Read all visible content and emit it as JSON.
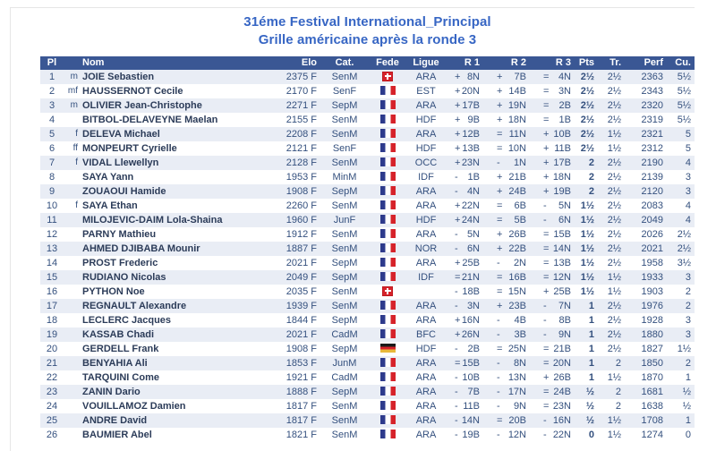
{
  "header": {
    "title": "31éme Festival International_Principal",
    "subtitle": "Grille américaine après la ronde 3"
  },
  "colors": {
    "title_text": "#3766C4",
    "table_header_bg": "#3A5794",
    "table_header_text": "#FFFFFF",
    "row_alt_bg": "#E9EDF5",
    "body_text": "#34507E",
    "flag_france_blue": "#2D3A8C",
    "flag_red": "#D6222A",
    "flag_germany_gold": "#E8B93B",
    "flag_germany_black": "#1A1A1A"
  },
  "table": {
    "columns": [
      "Pl",
      "Nom",
      "Elo",
      "Cat.",
      "Fede",
      "Ligue",
      "R 1",
      "R 2",
      "R 3",
      "Pts",
      "Tr.",
      "Perf",
      "Cu."
    ],
    "rows": [
      {
        "pl": "1",
        "title": "m",
        "name": "JOIE Sebastien",
        "elo": "2375 F",
        "cat": "SenM",
        "fede": "SUI",
        "ligue": "ARA",
        "r1": "+ 8N",
        "r2": "+ 7B",
        "r3": "= 4N",
        "pts": "2½",
        "tr": "2½",
        "perf": "2363",
        "cu": "5½"
      },
      {
        "pl": "2",
        "title": "mf",
        "name": "HAUSSERNOT Cecile",
        "elo": "2170 F",
        "cat": "SenF",
        "fede": "FRA",
        "ligue": "EST",
        "r1": "+ 20N",
        "r2": "+ 14B",
        "r3": "= 3N",
        "pts": "2½",
        "tr": "2½",
        "perf": "2343",
        "cu": "5½"
      },
      {
        "pl": "3",
        "title": "m",
        "name": "OLIVIER Jean-Christophe",
        "elo": "2271 F",
        "cat": "SepM",
        "fede": "FRA",
        "ligue": "ARA",
        "r1": "+ 17B",
        "r2": "+ 19N",
        "r3": "= 2B",
        "pts": "2½",
        "tr": "2½",
        "perf": "2320",
        "cu": "5½"
      },
      {
        "pl": "4",
        "title": "",
        "name": "BITBOL-DELAVEYNE Maelan",
        "elo": "2155 F",
        "cat": "SenM",
        "fede": "FRA",
        "ligue": "HDF",
        "r1": "+ 9B",
        "r2": "+ 18N",
        "r3": "= 1B",
        "pts": "2½",
        "tr": "2½",
        "perf": "2319",
        "cu": "5½"
      },
      {
        "pl": "5",
        "title": "f",
        "name": "DELEVA Michael",
        "elo": "2208 F",
        "cat": "SenM",
        "fede": "FRA",
        "ligue": "ARA",
        "r1": "+ 12B",
        "r2": "= 11N",
        "r3": "+ 10B",
        "pts": "2½",
        "tr": "1½",
        "perf": "2321",
        "cu": "5"
      },
      {
        "pl": "6",
        "title": "ff",
        "name": "MONPEURT Cyrielle",
        "elo": "2121 F",
        "cat": "SenF",
        "fede": "FRA",
        "ligue": "HDF",
        "r1": "+ 13B",
        "r2": "= 10N",
        "r3": "+ 11B",
        "pts": "2½",
        "tr": "1½",
        "perf": "2312",
        "cu": "5"
      },
      {
        "pl": "7",
        "title": "f",
        "name": "VIDAL Llewellyn",
        "elo": "2128 F",
        "cat": "SenM",
        "fede": "FRA",
        "ligue": "OCC",
        "r1": "+ 23N",
        "r2": "- 1N",
        "r3": "+ 17B",
        "pts": "2",
        "tr": "2½",
        "perf": "2190",
        "cu": "4"
      },
      {
        "pl": "8",
        "title": "",
        "name": "SAYA Yann",
        "elo": "1953 F",
        "cat": "MinM",
        "fede": "FRA",
        "ligue": "IDF",
        "r1": "- 1B",
        "r2": "+ 21B",
        "r3": "+ 18N",
        "pts": "2",
        "tr": "2½",
        "perf": "2139",
        "cu": "3"
      },
      {
        "pl": "9",
        "title": "",
        "name": "ZOUAOUI Hamide",
        "elo": "1908 F",
        "cat": "SepM",
        "fede": "FRA",
        "ligue": "ARA",
        "r1": "- 4N",
        "r2": "+ 24B",
        "r3": "+ 19B",
        "pts": "2",
        "tr": "2½",
        "perf": "2120",
        "cu": "3"
      },
      {
        "pl": "10",
        "title": "f",
        "name": "SAYA Ethan",
        "elo": "2260 F",
        "cat": "SenM",
        "fede": "FRA",
        "ligue": "ARA",
        "r1": "+ 22N",
        "r2": "= 6B",
        "r3": "- 5N",
        "pts": "1½",
        "tr": "2½",
        "perf": "2083",
        "cu": "4"
      },
      {
        "pl": "11",
        "title": "",
        "name": "MILOJEVIC-DAIM Lola-Shaina",
        "elo": "1960 F",
        "cat": "JunF",
        "fede": "FRA",
        "ligue": "HDF",
        "r1": "+ 24N",
        "r2": "= 5B",
        "r3": "- 6N",
        "pts": "1½",
        "tr": "2½",
        "perf": "2049",
        "cu": "4"
      },
      {
        "pl": "12",
        "title": "",
        "name": "PARNY Mathieu",
        "elo": "1912 F",
        "cat": "SenM",
        "fede": "FRA",
        "ligue": "ARA",
        "r1": "- 5N",
        "r2": "+ 26B",
        "r3": "= 15B",
        "pts": "1½",
        "tr": "2½",
        "perf": "2026",
        "cu": "2½"
      },
      {
        "pl": "13",
        "title": "",
        "name": "AHMED DJIBABA Mounir",
        "elo": "1887 F",
        "cat": "SenM",
        "fede": "FRA",
        "ligue": "NOR",
        "r1": "- 6N",
        "r2": "+ 22B",
        "r3": "= 14N",
        "pts": "1½",
        "tr": "2½",
        "perf": "2021",
        "cu": "2½"
      },
      {
        "pl": "14",
        "title": "",
        "name": "PROST Frederic",
        "elo": "2021 F",
        "cat": "SepM",
        "fede": "FRA",
        "ligue": "ARA",
        "r1": "+ 25B",
        "r2": "- 2N",
        "r3": "= 13B",
        "pts": "1½",
        "tr": "2½",
        "perf": "1958",
        "cu": "3½"
      },
      {
        "pl": "15",
        "title": "",
        "name": "RUDIANO Nicolas",
        "elo": "2049 F",
        "cat": "SepM",
        "fede": "FRA",
        "ligue": "IDF",
        "r1": "= 21N",
        "r2": "= 16B",
        "r3": "= 12N",
        "pts": "1½",
        "tr": "1½",
        "perf": "1933",
        "cu": "3"
      },
      {
        "pl": "16",
        "title": "",
        "name": "PYTHON Noe",
        "elo": "2035 F",
        "cat": "SenM",
        "fede": "SUI",
        "ligue": "",
        "r1": "- 18B",
        "r2": "= 15N",
        "r3": "+ 25B",
        "pts": "1½",
        "tr": "1½",
        "perf": "1903",
        "cu": "2"
      },
      {
        "pl": "17",
        "title": "",
        "name": "REGNAULT Alexandre",
        "elo": "1939 F",
        "cat": "SenM",
        "fede": "FRA",
        "ligue": "ARA",
        "r1": "- 3N",
        "r2": "+ 23B",
        "r3": "- 7N",
        "pts": "1",
        "tr": "2½",
        "perf": "1976",
        "cu": "2"
      },
      {
        "pl": "18",
        "title": "",
        "name": "LECLERC Jacques",
        "elo": "1844 F",
        "cat": "SepM",
        "fede": "FRA",
        "ligue": "ARA",
        "r1": "+ 16N",
        "r2": "- 4B",
        "r3": "- 8B",
        "pts": "1",
        "tr": "2½",
        "perf": "1928",
        "cu": "3"
      },
      {
        "pl": "19",
        "title": "",
        "name": "KASSAB Chadi",
        "elo": "2021 F",
        "cat": "CadM",
        "fede": "FRA",
        "ligue": "BFC",
        "r1": "+ 26N",
        "r2": "- 3B",
        "r3": "- 9N",
        "pts": "1",
        "tr": "2½",
        "perf": "1880",
        "cu": "3"
      },
      {
        "pl": "20",
        "title": "",
        "name": "GERDELL Frank",
        "elo": "1908 F",
        "cat": "SepM",
        "fede": "GER",
        "ligue": "HDF",
        "r1": "- 2B",
        "r2": "= 25N",
        "r3": "= 21B",
        "pts": "1",
        "tr": "2½",
        "perf": "1827",
        "cu": "1½"
      },
      {
        "pl": "21",
        "title": "",
        "name": "BENYAHIA Ali",
        "elo": "1853 F",
        "cat": "JunM",
        "fede": "FRA",
        "ligue": "ARA",
        "r1": "= 15B",
        "r2": "- 8N",
        "r3": "= 20N",
        "pts": "1",
        "tr": "2",
        "perf": "1850",
        "cu": "2"
      },
      {
        "pl": "22",
        "title": "",
        "name": "TARQUINI Come",
        "elo": "1921 F",
        "cat": "CadM",
        "fede": "FRA",
        "ligue": "ARA",
        "r1": "- 10B",
        "r2": "- 13N",
        "r3": "+ 26B",
        "pts": "1",
        "tr": "1½",
        "perf": "1870",
        "cu": "1"
      },
      {
        "pl": "23",
        "title": "",
        "name": "ZANIN Dario",
        "elo": "1888 F",
        "cat": "SepM",
        "fede": "FRA",
        "ligue": "ARA",
        "r1": "- 7B",
        "r2": "- 17N",
        "r3": "= 24B",
        "pts": "½",
        "tr": "2",
        "perf": "1681",
        "cu": "½"
      },
      {
        "pl": "24",
        "title": "",
        "name": "VOUILLAMOZ Damien",
        "elo": "1817 F",
        "cat": "SenM",
        "fede": "FRA",
        "ligue": "ARA",
        "r1": "- 11B",
        "r2": "- 9N",
        "r3": "= 23N",
        "pts": "½",
        "tr": "2",
        "perf": "1638",
        "cu": "½"
      },
      {
        "pl": "25",
        "title": "",
        "name": "ANDRE David",
        "elo": "1817 F",
        "cat": "SenM",
        "fede": "FRA",
        "ligue": "ARA",
        "r1": "- 14N",
        "r2": "= 20B",
        "r3": "- 16N",
        "pts": "½",
        "tr": "1½",
        "perf": "1708",
        "cu": "1"
      },
      {
        "pl": "26",
        "title": "",
        "name": "BAUMIER Abel",
        "elo": "1821 F",
        "cat": "SenM",
        "fede": "FRA",
        "ligue": "ARA",
        "r1": "- 19B",
        "r2": "- 12N",
        "r3": "- 22N",
        "pts": "0",
        "tr": "1½",
        "perf": "1274",
        "cu": "0"
      }
    ]
  }
}
